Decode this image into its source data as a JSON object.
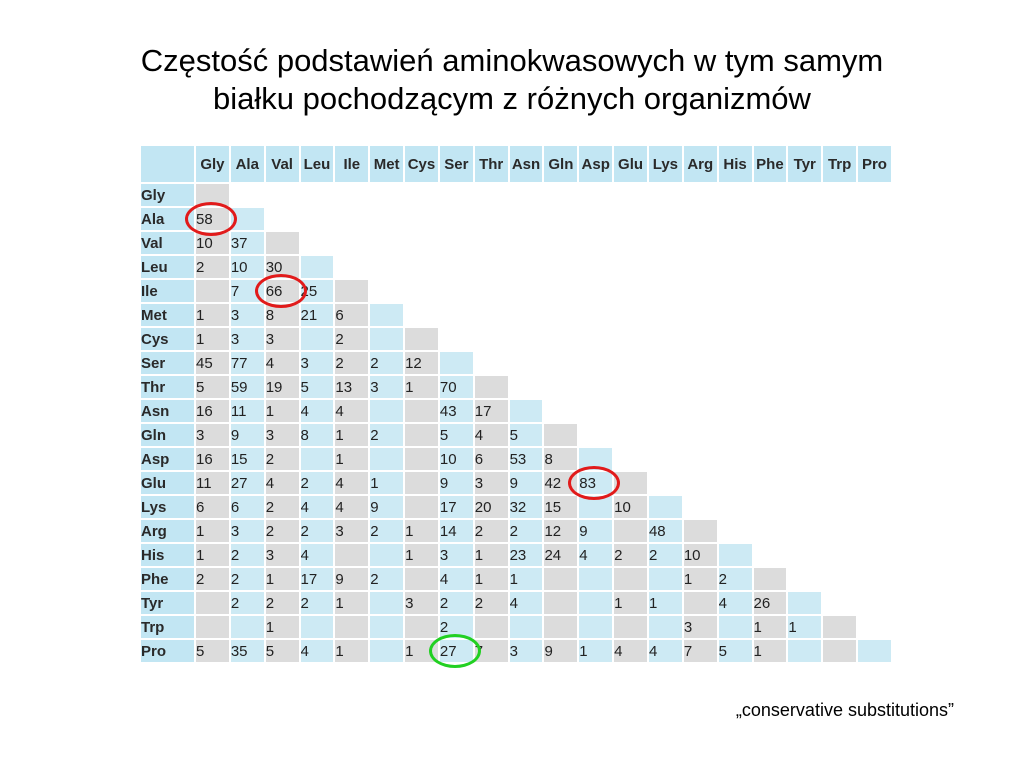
{
  "title": {
    "line1": "Częstość podstawień aminokwasowych w tym samym",
    "line2": "białku pochodzącym z różnych organizmów"
  },
  "table": {
    "columns": [
      "Gly",
      "Ala",
      "Val",
      "Leu",
      "Ile",
      "Met",
      "Cys",
      "Ser",
      "Thr",
      "Asn",
      "Gln",
      "Asp",
      "Glu",
      "Lys",
      "Arg",
      "His",
      "Phe",
      "Tyr",
      "Trp",
      "Pro"
    ],
    "rows": [
      {
        "label": "Gly",
        "values": []
      },
      {
        "label": "Ala",
        "values": [
          "58"
        ]
      },
      {
        "label": "Val",
        "values": [
          "10",
          "37"
        ]
      },
      {
        "label": "Leu",
        "values": [
          "2",
          "10",
          "30"
        ]
      },
      {
        "label": "Ile",
        "values": [
          "",
          "7",
          "66",
          "25"
        ]
      },
      {
        "label": "Met",
        "values": [
          "1",
          "3",
          "8",
          "21",
          "6"
        ]
      },
      {
        "label": "Cys",
        "values": [
          "1",
          "3",
          "3",
          "",
          "2",
          ""
        ]
      },
      {
        "label": "Ser",
        "values": [
          "45",
          "77",
          "4",
          "3",
          "2",
          "2",
          "12"
        ]
      },
      {
        "label": "Thr",
        "values": [
          "5",
          "59",
          "19",
          "5",
          "13",
          "3",
          "1",
          "70"
        ]
      },
      {
        "label": "Asn",
        "values": [
          "16",
          "11",
          "1",
          "4",
          "4",
          "",
          "",
          "43",
          "17"
        ]
      },
      {
        "label": "Gln",
        "values": [
          "3",
          "9",
          "3",
          "8",
          "1",
          "2",
          "",
          "5",
          "4",
          "5"
        ]
      },
      {
        "label": "Asp",
        "values": [
          "16",
          "15",
          "2",
          "",
          "1",
          "",
          "",
          "10",
          "6",
          "53",
          "8"
        ]
      },
      {
        "label": "Glu",
        "values": [
          "11",
          "27",
          "4",
          "2",
          "4",
          "1",
          "",
          "9",
          "3",
          "9",
          "42",
          "83"
        ]
      },
      {
        "label": "Lys",
        "values": [
          "6",
          "6",
          "2",
          "4",
          "4",
          "9",
          "",
          "17",
          "20",
          "32",
          "15",
          "",
          "10"
        ]
      },
      {
        "label": "Arg",
        "values": [
          "1",
          "3",
          "2",
          "2",
          "3",
          "2",
          "1",
          "14",
          "2",
          "2",
          "12",
          "9",
          "",
          "48"
        ]
      },
      {
        "label": "His",
        "values": [
          "1",
          "2",
          "3",
          "4",
          "",
          "",
          "1",
          "3",
          "1",
          "23",
          "24",
          "4",
          "2",
          "2",
          "10"
        ]
      },
      {
        "label": "Phe",
        "values": [
          "2",
          "2",
          "1",
          "17",
          "9",
          "2",
          "",
          "4",
          "1",
          "1",
          "",
          "",
          "",
          "",
          "1",
          "2"
        ]
      },
      {
        "label": "Tyr",
        "values": [
          "",
          "2",
          "2",
          "2",
          "1",
          "",
          "3",
          "2",
          "2",
          "4",
          "",
          "",
          "1",
          "1",
          "",
          "4",
          "26"
        ]
      },
      {
        "label": "Trp",
        "values": [
          "",
          "",
          "1",
          "",
          "",
          "",
          "",
          "2",
          "",
          "",
          "",
          "",
          "",
          "",
          "3",
          "",
          "1",
          "1"
        ]
      },
      {
        "label": "Pro",
        "values": [
          "5",
          "35",
          "5",
          "4",
          "1",
          "",
          "1",
          "27",
          "7",
          "3",
          "9",
          "1",
          "4",
          "4",
          "7",
          "5",
          "1",
          "",
          "",
          ""
        ]
      }
    ]
  },
  "highlights": [
    {
      "row": "Ala",
      "col": "Gly",
      "value": "58",
      "color": "#e11b1b"
    },
    {
      "row": "Ile",
      "col": "Val",
      "value": "66",
      "color": "#e11b1b"
    },
    {
      "row": "Glu",
      "col": "Asp",
      "value": "83",
      "color": "#e11b1b"
    },
    {
      "row": "Pro",
      "col": "Ser",
      "value": "27",
      "color": "#22d022"
    }
  ],
  "caption": "„conservative substitutions”",
  "colors": {
    "header_blue": "#c2e6f3",
    "cell_blue": "#cdeaf4",
    "cell_gray": "#dcdcdc",
    "highlight_red": "#e11b1b",
    "highlight_green": "#22d022"
  }
}
